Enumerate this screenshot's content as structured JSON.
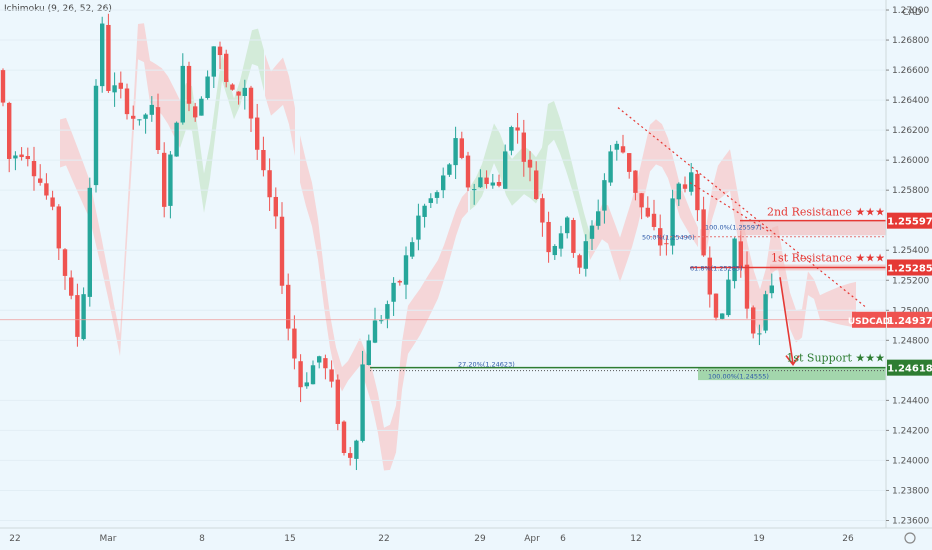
{
  "indicator": "Ichimoku (9, 26, 52, 26)",
  "currency": "CAD",
  "chart_data": {
    "type": "candlestick",
    "symbol": "USDCAD",
    "x_ticks": [
      "22",
      "Mar",
      "8",
      "15",
      "22",
      "29",
      "Apr",
      "6",
      "12",
      "19",
      "26"
    ],
    "y_ticks": [
      "1.27000",
      "1.26800",
      "1.26600",
      "1.26400",
      "1.26200",
      "1.26000",
      "1.25800",
      "1.25400",
      "1.25200",
      "1.25000",
      "1.24800",
      "1.24400",
      "1.24200",
      "1.24000",
      "1.23800",
      "1.23600"
    ],
    "ylim": [
      1.2355,
      1.2712
    ],
    "levels": [
      {
        "name": "2nd Resistance ★★★",
        "price": "1.25597",
        "value": 1.25597,
        "color": "#e53935"
      },
      {
        "name": "1st Resistance ★★★",
        "price": "1.25285",
        "value": 1.25285,
        "color": "#e53935"
      },
      {
        "name": "1st Support ★★★",
        "price": "1.24618",
        "value": 1.24618,
        "color": "#2e7d32"
      }
    ],
    "last_price": {
      "label": "USDCAD",
      "price": "1.24937",
      "value": 1.24937,
      "color": "#ef5350"
    },
    "fib_labels": [
      "100.0%(1.25597)",
      "50.0%(1.25496)",
      "61.8%(1.25285)",
      "27.20%(1.24623)",
      "100.00%(1.24555)"
    ],
    "colors": {
      "up": "#26a69a",
      "down": "#ef5350",
      "cloud_up": "#c8e6c9",
      "cloud_down": "#f8c7c7"
    }
  }
}
